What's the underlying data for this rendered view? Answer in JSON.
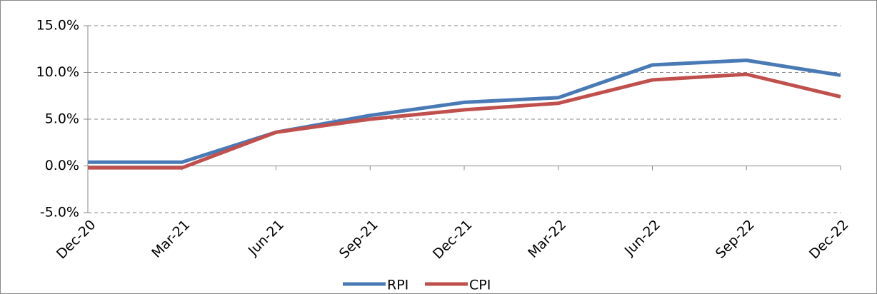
{
  "chart_data": {
    "type": "line",
    "categories": [
      "Dec-20",
      "Mar-21",
      "Jun-21",
      "Sep-21",
      "Dec-21",
      "Mar-22",
      "Jun-22",
      "Sep-22",
      "Dec-22"
    ],
    "series": [
      {
        "name": "RPI",
        "color": "#4a7ab5",
        "values": [
          0.4,
          0.4,
          3.6,
          5.4,
          6.8,
          7.3,
          10.8,
          11.3,
          9.7
        ]
      },
      {
        "name": "CPI",
        "color": "#c0504d",
        "values": [
          -0.2,
          -0.2,
          3.6,
          5.0,
          6.0,
          6.7,
          9.2,
          9.8,
          7.4
        ]
      }
    ],
    "ylim": [
      -5,
      15
    ],
    "yticks": [
      {
        "value": -5,
        "label": "-5.0%"
      },
      {
        "value": 0,
        "label": "0.0%"
      },
      {
        "value": 5,
        "label": "5.0%"
      },
      {
        "value": 10,
        "label": "10.0%"
      },
      {
        "value": 15,
        "label": "15.0%"
      }
    ],
    "grid": true,
    "legend": "bottom"
  }
}
